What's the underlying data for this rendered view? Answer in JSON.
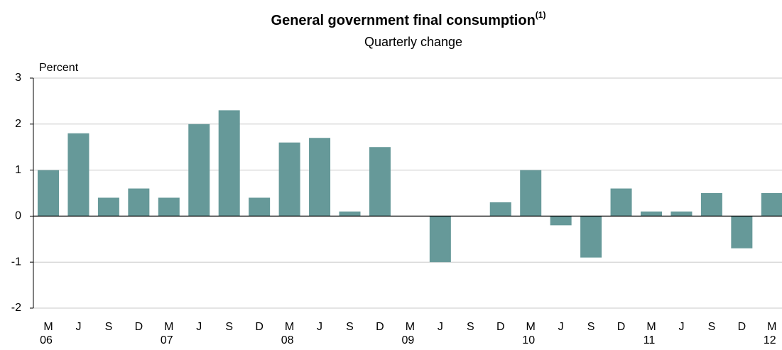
{
  "chart_data": {
    "type": "bar",
    "title": "General government final consumption",
    "title_superscript": "(1)",
    "subtitle": "Quarterly  change",
    "y_label": "Percent",
    "categories": [
      "M",
      "J",
      "S",
      "D",
      "M",
      "J",
      "S",
      "D",
      "M",
      "J",
      "S",
      "D",
      "M",
      "J",
      "S",
      "D",
      "M",
      "J",
      "S",
      "D",
      "M",
      "J",
      "S",
      "D",
      "M"
    ],
    "years": [
      "06",
      null,
      null,
      null,
      "07",
      null,
      null,
      null,
      "08",
      null,
      null,
      null,
      "09",
      null,
      null,
      null,
      "10",
      null,
      null,
      null,
      "11",
      null,
      null,
      null,
      "12"
    ],
    "values": [
      1.0,
      1.8,
      0.4,
      0.6,
      0.4,
      2.0,
      2.3,
      0.4,
      1.6,
      1.7,
      0.1,
      1.5,
      0,
      -1.0,
      0,
      0.3,
      1.0,
      -0.2,
      -0.9,
      0.6,
      0.1,
      0.1,
      0.5,
      -0.7,
      0.5
    ],
    "color": "#669999",
    "ylim": [
      -2,
      3
    ],
    "yticks": [
      -2,
      -1,
      0,
      1,
      2,
      3
    ],
    "grid": true
  }
}
